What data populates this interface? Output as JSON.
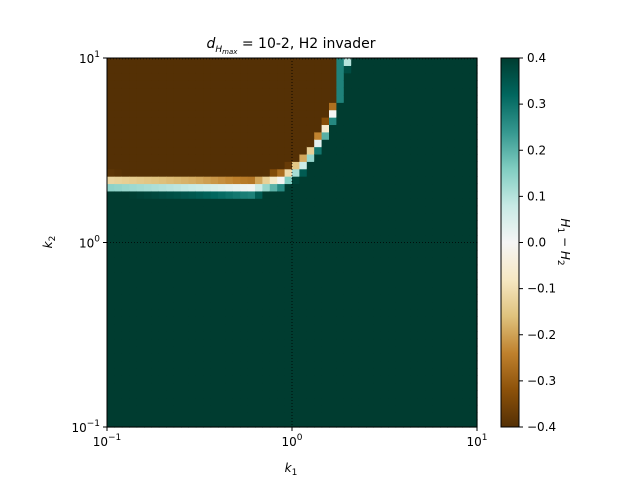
{
  "chart_data": {
    "type": "heatmap",
    "title_prefix": "d",
    "title_subscript": "H",
    "title_subsubscript": "max",
    "title_suffix": " = 10-2, H2 invader",
    "xlabel_main": "k",
    "xlabel_sub": "1",
    "ylabel_main": "k",
    "ylabel_sub": "2",
    "x_scale": "log",
    "y_scale": "log",
    "xlim": [
      0.1,
      10
    ],
    "ylim": [
      0.1,
      10
    ],
    "x_ticks": [
      {
        "value": 0.1,
        "base": "10",
        "exp": "−1"
      },
      {
        "value": 1,
        "base": "10",
        "exp": "0"
      },
      {
        "value": 10,
        "base": "10",
        "exp": "1"
      }
    ],
    "y_ticks": [
      {
        "value": 0.1,
        "base": "10",
        "exp": "−1"
      },
      {
        "value": 1,
        "base": "10",
        "exp": "0"
      },
      {
        "value": 10,
        "base": "10",
        "exp": "1"
      }
    ],
    "grid": true,
    "grid_style": "dotted",
    "grid_lines": [
      1
    ],
    "colormap": "BrBG",
    "colorbar": {
      "label_main": "H",
      "label_sub1": "1",
      "label_minus": " − ",
      "label_sub2": "2",
      "vmin": -0.4,
      "vmax": 0.4,
      "ticks": [
        "0.4",
        "0.3",
        "0.2",
        "0.1",
        "0.0",
        "−0.1",
        "−0.2",
        "−0.3",
        "−0.4"
      ],
      "tick_values": [
        0.4,
        0.3,
        0.2,
        0.1,
        0.0,
        -0.1,
        -0.2,
        -0.3,
        -0.4
      ]
    },
    "grid_resolution": 50,
    "region_value_inside": -0.4,
    "region_value_outside": 0.4,
    "boundary_curve": [
      {
        "k1": 0.1,
        "k2": 2.1
      },
      {
        "k1": 0.3,
        "k2": 2.05
      },
      {
        "k1": 0.6,
        "k2": 2.0
      },
      {
        "k1": 0.9,
        "k2": 2.2
      },
      {
        "k1": 1.2,
        "k2": 2.8
      },
      {
        "k1": 1.5,
        "k2": 4.0
      },
      {
        "k1": 1.8,
        "k2": 6.0
      },
      {
        "k1": 2.0,
        "k2": 10.0
      }
    ]
  },
  "colors": {
    "brbg_stops": [
      "#543005",
      "#8c510a",
      "#bf812d",
      "#dfc27d",
      "#f6e8c3",
      "#f5f5f5",
      "#c7eae5",
      "#80cdc1",
      "#35978f",
      "#01665e",
      "#003c30"
    ]
  }
}
